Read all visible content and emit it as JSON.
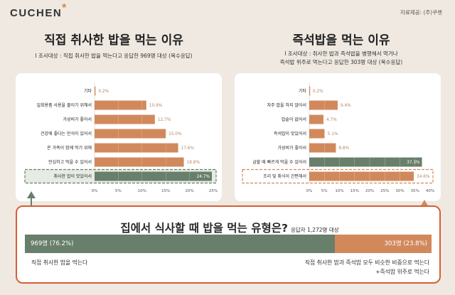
{
  "header": {
    "logo": "CUCHEN",
    "logo_star": "*",
    "credit": "자료제공: (주)쿠첸"
  },
  "colors": {
    "background": "#efe9e1",
    "bar": "#d1895c",
    "highlight": "#687f6b",
    "accent_border": "#d65f37"
  },
  "chart_data": [
    {
      "type": "bar",
      "orientation": "horizontal",
      "title": "직접 취사한 밥을 먹는 이유",
      "subtitle": "I 조사대상 : 직접 취사한 밥을 먹는다고 응답한 969명 대상 (복수응답)",
      "categories": [
        "기타",
        "일회용품 사용을 줄이기 위해서",
        "가성비가 좋아서",
        "건강에 좋다는 인식이 있어서",
        "온 가족이 함께 먹기 위해",
        "안심하고 먹을 수 있어서",
        "취사한 밥이 맛있어서"
      ],
      "values": [
        0.2,
        10.9,
        12.7,
        15.0,
        17.6,
        18.8,
        24.7
      ],
      "data_labels": [
        "0.2%",
        "10.9%",
        "12.7%",
        "15.0%",
        "17.6%",
        "18.8%",
        "24.7%"
      ],
      "highlight_index": 6,
      "xlim": [
        0,
        25
      ],
      "xticks": [
        "0%",
        "5%",
        "10%",
        "15%",
        "20%",
        "25%"
      ],
      "xtick_values": [
        0,
        5,
        10,
        15,
        20,
        25
      ]
    },
    {
      "type": "bar",
      "orientation": "horizontal",
      "title": "즉석밥을 먹는 이유",
      "subtitle": "I 조사대상 : 취사한 밥과 즉석밥을 병행해서 먹거나\n즉석밥 위주로 먹는다고 응답한 303명 대상 (복수응답)",
      "subtitle_lines": [
        "I 조사대상 : 취사한 밥과 즉석밥을 병행해서 먹거나",
        "즉석밥 위주로 먹는다고 응답한 303명 대상 (복수응답)"
      ],
      "categories": [
        "기타",
        "자주 밥을 하지 않아서",
        "밥솥이 없어서",
        "즉석밥이 맛있어서",
        "가성비가 좋아서",
        "급할 때 빠르게 먹을 수 있어서",
        "조리 및 취식이 간편해서"
      ],
      "values": [
        0.2,
        9.4,
        4.7,
        5.1,
        8.8,
        37.3,
        34.6
      ],
      "data_labels": [
        "0.2%",
        "9.4%",
        "4.7%",
        "5.1%",
        "8.8%",
        "37.3%",
        "34.6%"
      ],
      "highlight_index": 5,
      "boxed_index": 6,
      "xlim": [
        0,
        40
      ],
      "xticks": [
        "0%",
        "5%",
        "10%",
        "15%",
        "20%",
        "25%",
        "30%",
        "35%",
        "40%"
      ],
      "xtick_values": [
        0,
        5,
        10,
        15,
        20,
        25,
        30,
        35,
        40
      ]
    },
    {
      "type": "bar",
      "orientation": "stacked-horizontal",
      "title": "집에서 식사할 때 밥을 먹는 유형은?",
      "subtitle": "응답자 1,272명 대상",
      "segments": [
        {
          "label": "969명 (76.2%)",
          "count": 969,
          "percent": 76.2,
          "description": "직접 취사한 밥을 먹는다"
        },
        {
          "label": "303명 (23.8%)",
          "count": 303,
          "percent": 23.8,
          "description_lines": [
            "직접 취사한 밥과 즉석밥 모두 비슷한 비중으로 먹는다",
            "+즉석밥 위주로 먹는다"
          ]
        }
      ]
    }
  ]
}
